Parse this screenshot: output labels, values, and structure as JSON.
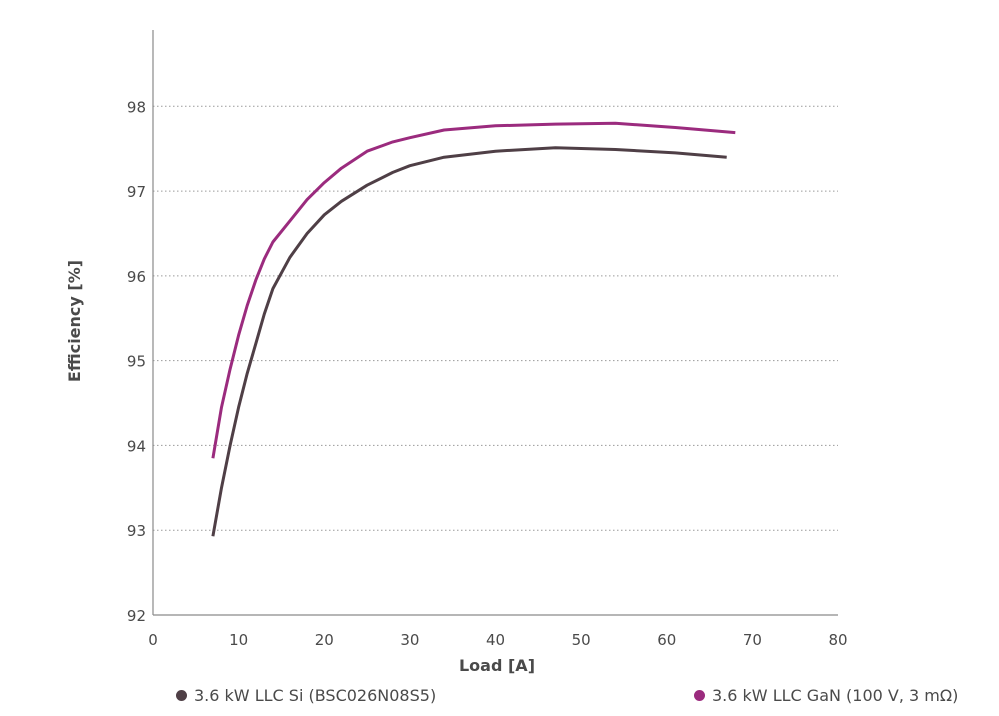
{
  "chart_data": {
    "type": "line",
    "title": "",
    "xlabel": "Load [A]",
    "ylabel": "Efficiency [%]",
    "xlim": [
      0,
      80
    ],
    "ylim": [
      92,
      98.9
    ],
    "xticks": [
      0,
      10,
      20,
      30,
      40,
      50,
      60,
      70,
      80
    ],
    "yticks": [
      92,
      93,
      94,
      95,
      96,
      97,
      98
    ],
    "grid": "horizontal-dotted",
    "legend_position": "bottom",
    "series": [
      {
        "name": "3.6 kW LLC Si (BSC026N08S5)",
        "color": "#4f3f46",
        "x": [
          7,
          8,
          9,
          10,
          11,
          12,
          13,
          14,
          16,
          18,
          20,
          22,
          25,
          28,
          30,
          34,
          40,
          47,
          54,
          61,
          67
        ],
        "y": [
          92.93,
          93.5,
          94.0,
          94.45,
          94.85,
          95.2,
          95.55,
          95.85,
          96.22,
          96.5,
          96.72,
          96.88,
          97.07,
          97.22,
          97.3,
          97.4,
          97.47,
          97.51,
          97.49,
          97.45,
          97.4
        ]
      },
      {
        "name": "3.6 kW LLC GaN (100 V, 3 mΩ)",
        "color": "#9b2b7e",
        "x": [
          7,
          8,
          9,
          10,
          11,
          12,
          13,
          14,
          16,
          18,
          20,
          22,
          25,
          28,
          30,
          34,
          40,
          47,
          54,
          61,
          68
        ],
        "y": [
          93.85,
          94.45,
          94.9,
          95.3,
          95.65,
          95.95,
          96.2,
          96.4,
          96.65,
          96.9,
          97.1,
          97.27,
          97.47,
          97.58,
          97.63,
          97.72,
          97.77,
          97.79,
          97.8,
          97.75,
          97.69
        ]
      }
    ]
  }
}
